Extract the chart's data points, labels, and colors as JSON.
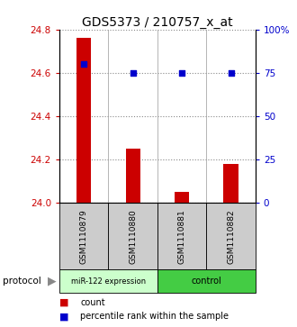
{
  "title": "GDS5373 / 210757_x_at",
  "samples": [
    "GSM1110879",
    "GSM1110880",
    "GSM1110881",
    "GSM1110882"
  ],
  "bar_values": [
    24.76,
    24.25,
    24.05,
    24.18
  ],
  "percentile_values": [
    80,
    75,
    75,
    75
  ],
  "ylim_left": [
    24.0,
    24.8
  ],
  "ylim_right": [
    0,
    100
  ],
  "yticks_left": [
    24.0,
    24.2,
    24.4,
    24.6,
    24.8
  ],
  "yticks_right": [
    0,
    25,
    50,
    75,
    100
  ],
  "ytick_labels_right": [
    "0",
    "25",
    "50",
    "75",
    "100%"
  ],
  "bar_color": "#cc0000",
  "dot_color": "#0000cc",
  "group1_label": "miR-122 expression",
  "group2_label": "control",
  "group1_color": "#ccffcc",
  "group2_color": "#44cc44",
  "sample_box_color": "#cccccc",
  "legend_count_color": "#cc0000",
  "legend_dot_color": "#0000cc",
  "protocol_label": "protocol",
  "dotted_line_color": "#888888",
  "bar_width": 0.3
}
